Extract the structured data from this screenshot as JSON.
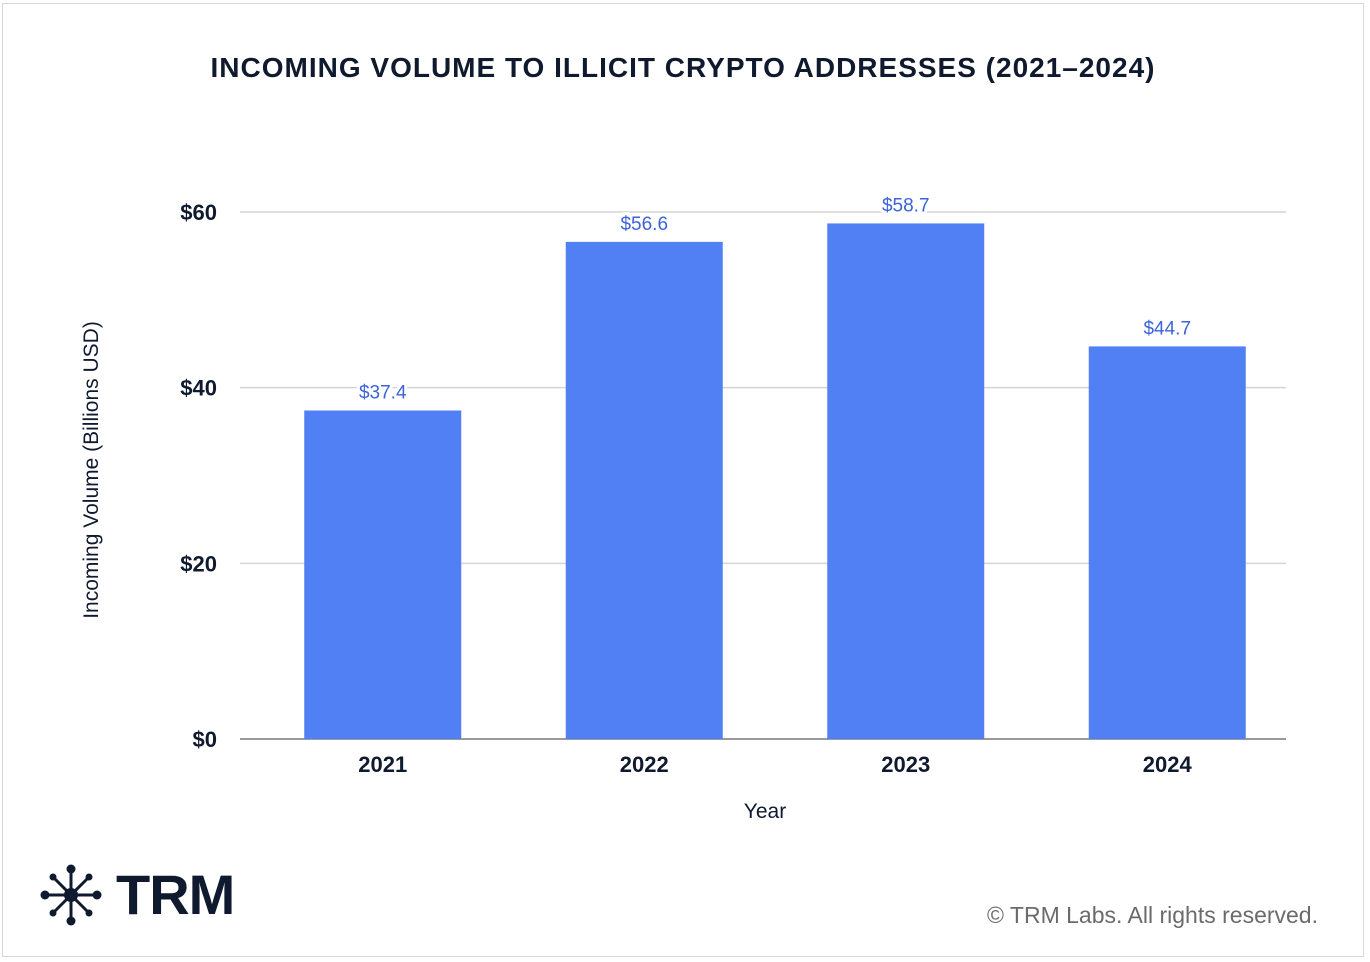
{
  "colors": {
    "bar": "#5180f5",
    "label": "#3d63d8",
    "text": "#0f1a2e"
  },
  "chart_data": {
    "type": "bar",
    "title": "INCOMING VOLUME TO ILLICIT CRYPTO ADDRESSES (2021–2024)",
    "xlabel": "Year",
    "ylabel": "Incoming Volume (Billions USD)",
    "categories": [
      "2021",
      "2022",
      "2023",
      "2024"
    ],
    "values": [
      37.4,
      56.6,
      58.7,
      44.7
    ],
    "data_labels": [
      "$37.4",
      "$56.6",
      "$58.7",
      "$44.7"
    ],
    "ylim": [
      0,
      60
    ],
    "yticks": [
      0,
      20,
      40,
      60
    ],
    "ytick_labels": [
      "$0",
      "$20",
      "$40",
      "$60"
    ],
    "grid": true,
    "legend": "none"
  },
  "brand": {
    "logo_text": "TRM",
    "logo_icon": "network-node-icon"
  },
  "footer": {
    "copyright": "© TRM Labs. All rights reserved."
  }
}
